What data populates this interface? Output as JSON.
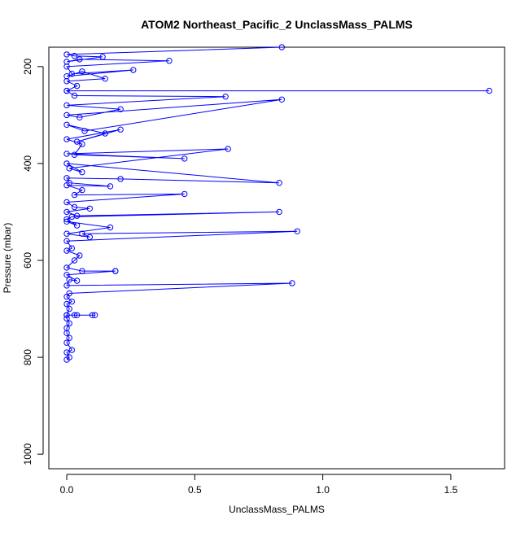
{
  "chart_data": {
    "type": "line",
    "title": "ATOM2 Northeast_Pacific_2 UnclassMass_PALMS",
    "xlabel": "UnclassMass_PALMS",
    "ylabel": "Pressure (mbar)",
    "xlim": [
      -0.07,
      1.71
    ],
    "ylim": [
      1030,
      160
    ],
    "y_inverted": true,
    "x_ticks": [
      0.0,
      0.5,
      1.0,
      1.5
    ],
    "x_tick_labels": [
      "0.0",
      "0.5",
      "1.0",
      "1.5"
    ],
    "y_ticks": [
      200,
      400,
      600,
      800,
      1000
    ],
    "y_tick_labels": [
      "200",
      "400",
      "600",
      "800",
      "1000"
    ],
    "grid": false,
    "series": [
      {
        "color": "#0000ff",
        "marker": "open-circle",
        "points": [
          [
            0.0,
            805
          ],
          [
            0.01,
            800
          ],
          [
            0.0,
            790
          ],
          [
            0.02,
            785
          ],
          [
            0.0,
            770
          ],
          [
            0.01,
            760
          ],
          [
            0.0,
            750
          ],
          [
            0.0,
            740
          ],
          [
            0.01,
            730
          ],
          [
            0.0,
            720
          ],
          [
            0.0,
            713
          ],
          [
            0.03,
            713
          ],
          [
            0.1,
            713
          ],
          [
            0.11,
            713
          ],
          [
            0.04,
            713
          ],
          [
            0.0,
            713
          ],
          [
            0.01,
            700
          ],
          [
            0.0,
            690
          ],
          [
            0.02,
            685
          ],
          [
            0.0,
            675
          ],
          [
            0.01,
            668
          ],
          [
            0.88,
            647
          ],
          [
            0.0,
            652
          ],
          [
            0.01,
            640
          ],
          [
            0.04,
            642
          ],
          [
            0.0,
            630
          ],
          [
            0.19,
            622
          ],
          [
            0.19,
            622
          ],
          [
            0.06,
            622
          ],
          [
            0.0,
            615
          ],
          [
            0.03,
            600
          ],
          [
            0.05,
            590
          ],
          [
            0.0,
            580
          ],
          [
            0.02,
            575
          ],
          [
            0.0,
            560
          ],
          [
            0.9,
            540
          ],
          [
            0.06,
            545
          ],
          [
            0.09,
            552
          ],
          [
            0.0,
            545
          ],
          [
            0.17,
            532
          ],
          [
            0.0,
            520
          ],
          [
            0.04,
            528
          ],
          [
            0.0,
            515
          ],
          [
            0.02,
            510
          ],
          [
            0.83,
            500
          ],
          [
            0.04,
            508
          ],
          [
            0.0,
            500
          ],
          [
            0.09,
            493
          ],
          [
            0.03,
            490
          ],
          [
            0.0,
            480
          ],
          [
            0.46,
            463
          ],
          [
            0.03,
            465
          ],
          [
            0.06,
            455
          ],
          [
            0.0,
            445
          ],
          [
            0.17,
            447
          ],
          [
            0.01,
            440
          ],
          [
            0.0,
            430
          ],
          [
            0.21,
            432
          ],
          [
            0.83,
            440
          ],
          [
            0.0,
            400
          ],
          [
            0.06,
            418
          ],
          [
            0.01,
            410
          ],
          [
            0.63,
            370
          ],
          [
            0.0,
            380
          ],
          [
            0.46,
            390
          ],
          [
            0.03,
            382
          ],
          [
            0.06,
            360
          ],
          [
            0.0,
            350
          ],
          [
            0.21,
            330
          ],
          [
            0.04,
            355
          ],
          [
            0.15,
            338
          ],
          [
            0.0,
            320
          ],
          [
            0.07,
            333
          ],
          [
            0.84,
            268
          ],
          [
            0.0,
            300
          ],
          [
            0.05,
            305
          ],
          [
            0.21,
            288
          ],
          [
            0.0,
            280
          ],
          [
            0.62,
            262
          ],
          [
            0.03,
            260
          ],
          [
            0.0,
            250
          ],
          [
            1.65,
            250
          ],
          [
            0.0,
            250
          ],
          [
            0.04,
            240
          ],
          [
            0.0,
            230
          ],
          [
            0.15,
            225
          ],
          [
            0.06,
            210
          ],
          [
            0.0,
            220
          ],
          [
            0.26,
            207
          ],
          [
            0.02,
            215
          ],
          [
            0.0,
            200
          ],
          [
            0.4,
            188
          ],
          [
            0.05,
            185
          ],
          [
            0.0,
            190
          ],
          [
            0.14,
            180
          ],
          [
            0.03,
            178
          ],
          [
            0.0,
            175
          ],
          [
            0.84,
            160
          ]
        ]
      }
    ]
  }
}
